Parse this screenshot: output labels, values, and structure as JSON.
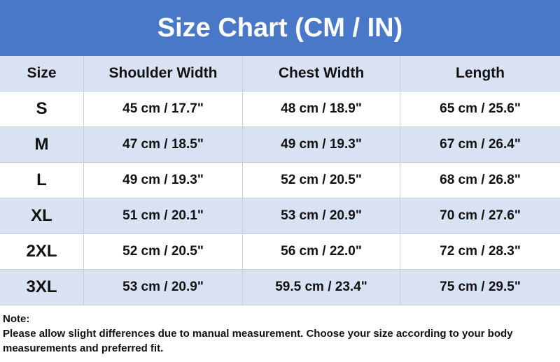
{
  "header": {
    "title": "Size Chart (CM / IN)"
  },
  "table": {
    "columns": [
      "Size",
      "Shoulder Width",
      "Chest Width",
      "Length"
    ],
    "rows": [
      [
        "S",
        "45 cm / 17.7\"",
        "48 cm / 18.9\"",
        "65 cm / 25.6\""
      ],
      [
        "M",
        "47 cm / 18.5\"",
        "49 cm / 19.3\"",
        "67 cm / 26.4\""
      ],
      [
        "L",
        "49 cm / 19.3\"",
        "52 cm / 20.5\"",
        "68 cm / 26.8\""
      ],
      [
        "XL",
        "51 cm / 20.1\"",
        "53 cm / 20.9\"",
        "70 cm / 27.6\""
      ],
      [
        "2XL",
        "52 cm / 20.5\"",
        "56 cm / 22.0\"",
        "72 cm / 28.3\""
      ],
      [
        "3XL",
        "53 cm / 20.9\"",
        "59.5 cm / 23.4\"",
        "75 cm / 29.5\""
      ]
    ]
  },
  "note": {
    "label": "Note:",
    "text": "Please allow slight differences due to manual measurement. Choose your size according to your body measurements and preferred fit."
  }
}
